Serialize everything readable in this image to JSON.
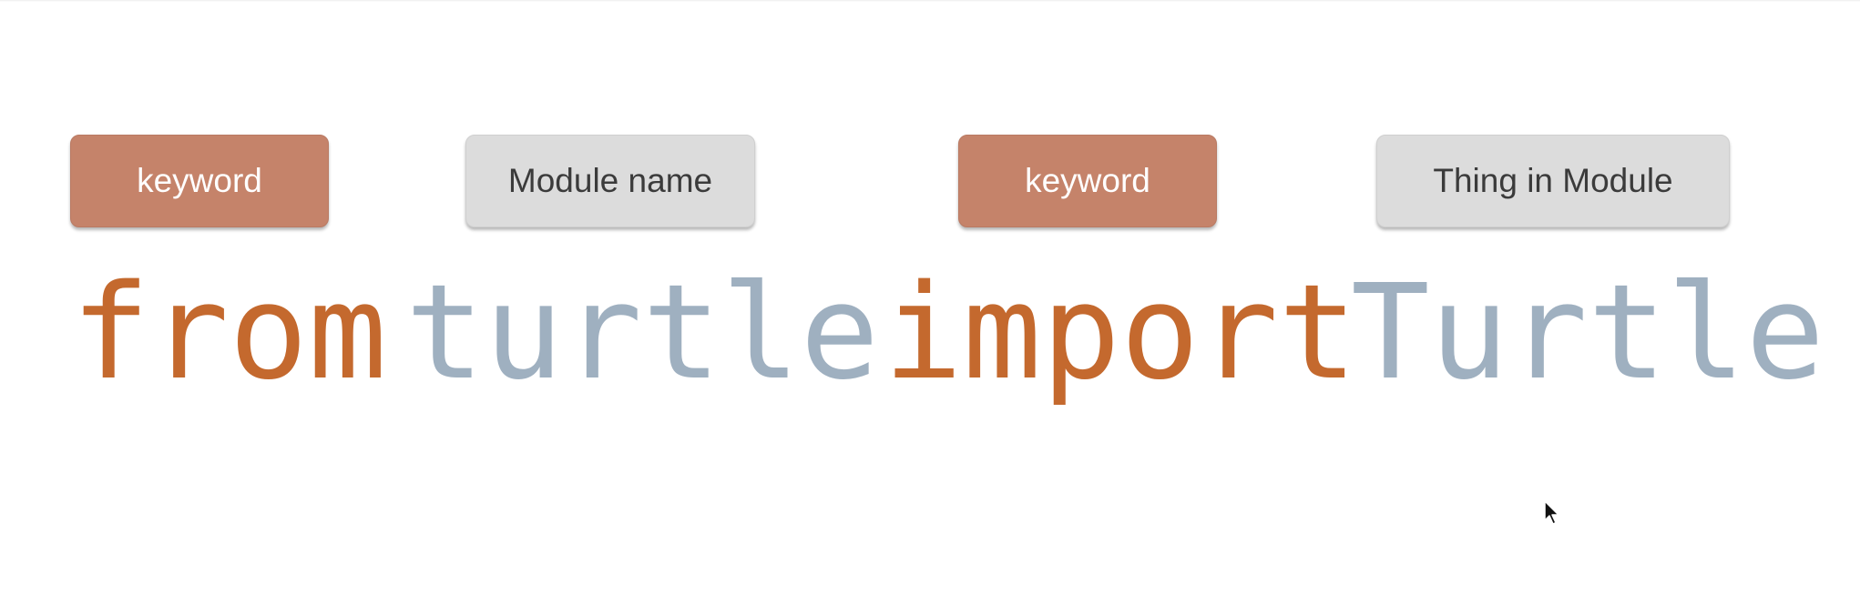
{
  "labels": {
    "keyword_1": "keyword",
    "module_name": "Module name",
    "keyword_2": "keyword",
    "thing_in_module": "Thing in Module"
  },
  "code": {
    "word_1": "from",
    "word_2": "turtle",
    "word_3": "import",
    "word_4": "Turtle"
  },
  "colors": {
    "keyword_box": "#c5836a",
    "name_box": "#dcdcdc",
    "keyword_text": "#c4692e",
    "name_text": "#9fb0c0"
  },
  "icons": {
    "cursor": "mouse-pointer-icon"
  }
}
